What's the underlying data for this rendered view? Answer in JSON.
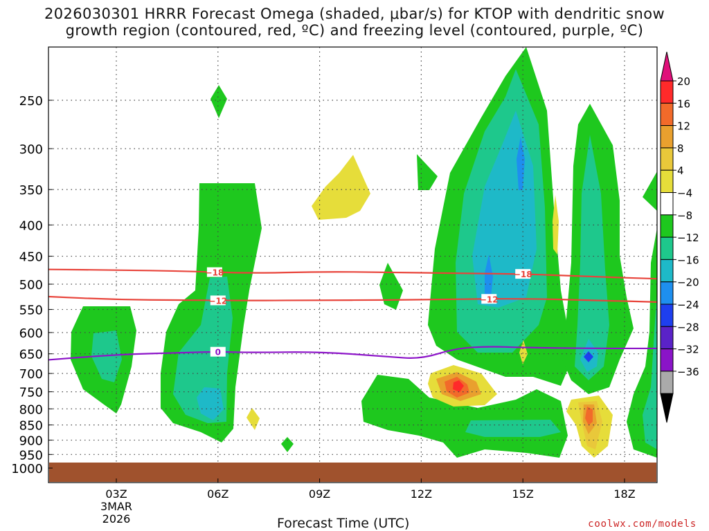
{
  "chart_data": {
    "type": "heatmap",
    "title_line1": "2026030301 HRRR Forecast Omega (shaded, μbar/s) for KTOP with dendritic snow",
    "title_line2": "growth region (contoured, red, ºC) and freezing level (contoured, purple, ºC)",
    "xlabel": "Forecast Time (UTC)",
    "ylabel": "",
    "x_ticks": [
      {
        "hour": 3,
        "label": "03Z",
        "sub1": "3MAR",
        "sub2": "2026"
      },
      {
        "hour": 6,
        "label": "06Z"
      },
      {
        "hour": 9,
        "label": "09Z"
      },
      {
        "hour": 12,
        "label": "12Z"
      },
      {
        "hour": 15,
        "label": "15Z"
      },
      {
        "hour": 18,
        "label": "18Z"
      }
    ],
    "xlim": [
      1,
      19
    ],
    "y_ticks": [
      250,
      300,
      350,
      400,
      450,
      500,
      550,
      600,
      650,
      700,
      750,
      800,
      850,
      900,
      950,
      1000
    ],
    "ylim_hPa": [
      200,
      1025
    ],
    "colorbar": {
      "labels": [
        "20",
        "16",
        "12",
        "8",
        "4",
        "−4",
        "−8",
        "−12",
        "−16",
        "−20",
        "−24",
        "−28",
        "−32",
        "−36"
      ],
      "colors": [
        "#ff2a2a",
        "#f26a2a",
        "#e9a02e",
        "#e9c83a",
        "#e6dd3a",
        "#ffffff",
        "#1ec81e",
        "#1ec88c",
        "#1eb9c8",
        "#1e8fef",
        "#1e3fef",
        "#5a22c8",
        "#8a14c8",
        "#aaaaaa"
      ],
      "top_triangle": "#e0107a",
      "bottom_triangle": "#000000"
    },
    "contours": [
      {
        "name": "dendritic-top",
        "label": "−18",
        "color": "#e8433a",
        "points": [
          [
            1,
            473
          ],
          [
            3,
            474
          ],
          [
            5,
            476
          ],
          [
            7,
            480
          ],
          [
            9,
            477
          ],
          [
            11,
            478
          ],
          [
            13,
            480
          ],
          [
            15,
            481
          ],
          [
            17,
            486
          ],
          [
            19,
            490
          ]
        ]
      },
      {
        "name": "dendritic-bottom",
        "label": "−12",
        "color": "#e8433a",
        "points": [
          [
            1,
            524
          ],
          [
            3,
            530
          ],
          [
            5,
            531
          ],
          [
            7,
            532
          ],
          [
            9,
            531
          ],
          [
            11,
            531
          ],
          [
            13,
            529
          ],
          [
            15,
            528
          ],
          [
            17,
            531
          ],
          [
            19,
            535
          ]
        ]
      },
      {
        "name": "freezing-level",
        "label": "0",
        "color": "#8c14c8",
        "points": [
          [
            1,
            665
          ],
          [
            3,
            652
          ],
          [
            5,
            647
          ],
          [
            6,
            645
          ],
          [
            7,
            647
          ],
          [
            9,
            645
          ],
          [
            11,
            657
          ],
          [
            12,
            663
          ],
          [
            13,
            637
          ],
          [
            14,
            632
          ],
          [
            15,
            635
          ],
          [
            17,
            637
          ],
          [
            19,
            637
          ]
        ]
      }
    ],
    "contour_label_hours": {
      "dendritic-top": [
        5.9,
        15
      ],
      "dendritic-bottom": [
        6,
        14
      ],
      "freezing-level": [
        6
      ]
    },
    "omega_features": [
      {
        "name": "omega-03z-lower",
        "hour": 3,
        "hPa": 665,
        "min": -12
      },
      {
        "name": "omega-06z-column",
        "hour": 6,
        "hPa": 770,
        "min": -16
      },
      {
        "name": "omega-06z-upper",
        "hour": 6,
        "hPa": 250,
        "min": -8
      },
      {
        "name": "omega-10z-upper",
        "hour": 9.8,
        "hPa": 380,
        "max": 8
      },
      {
        "name": "omega-13z-lower",
        "hour": 13,
        "hPa": 740,
        "max": 24
      },
      {
        "name": "omega-15z-column",
        "hour": 14.5,
        "hPa": 450,
        "min": -16
      },
      {
        "name": "omega-17z-column",
        "hour": 17,
        "hPa": 650,
        "min": -20
      },
      {
        "name": "omega-17z-lower",
        "hour": 17,
        "hPa": 830,
        "max": 16
      }
    ]
  },
  "credit": "coolwx.com/models"
}
